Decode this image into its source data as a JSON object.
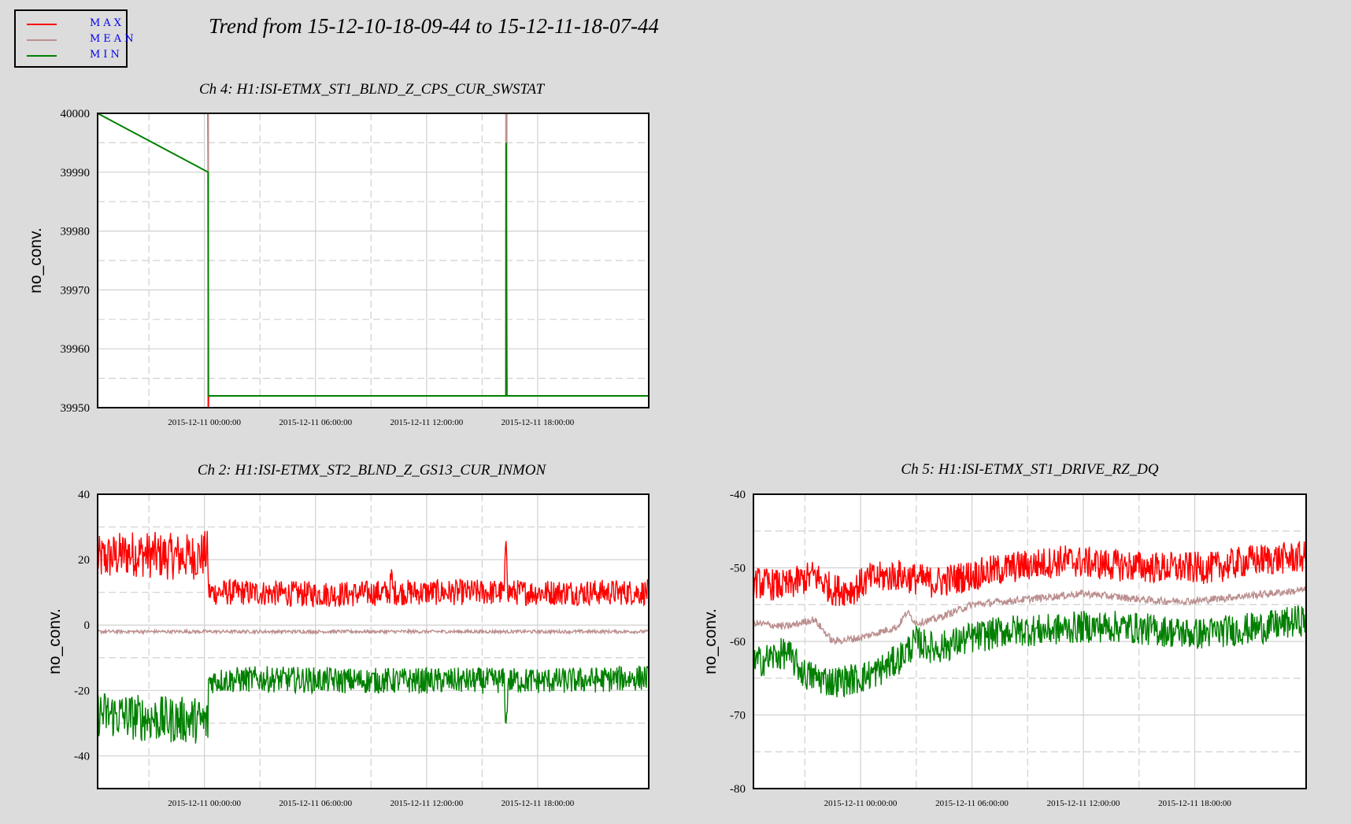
{
  "title": "Trend from 15-12-10-18-09-44 to 15-12-11-18-07-44",
  "legend": {
    "items": [
      {
        "label": "MAX",
        "color": "#ff0000"
      },
      {
        "label": "MEAN",
        "color": "#bc8f8f"
      },
      {
        "label": "MIN",
        "color": "#008000"
      }
    ]
  },
  "chart_data": [
    {
      "type": "line",
      "title": "Ch 4: H1:ISI-ETMX_ST1_BLND_Z_CPS_CUR_SWSTAT",
      "ylabel": "no_conv.",
      "ylim": [
        39950,
        40000
      ],
      "yticks": [
        "39950",
        "39960",
        "39970",
        "39980",
        "39990",
        "40000"
      ],
      "xlim": [
        -5.77,
        24.0
      ],
      "xticks": [
        {
          "label": "2015-12-11 00:00:00",
          "h": 0
        },
        {
          "label": "2015-12-11 06:00:00",
          "h": 6
        },
        {
          "label": "2015-12-11 12:00:00",
          "h": 12
        },
        {
          "label": "2015-12-11 18:00:00",
          "h": 18
        }
      ],
      "grid": true,
      "series": [
        {
          "name": "MAX",
          "color": "#ff0000",
          "x": [
            -5.77,
            0.19,
            0.2,
            0.21,
            0.22,
            16.29,
            16.3,
            16.31,
            16.32,
            16.33,
            24.0
          ],
          "y": [
            40000,
            40000,
            39993,
            39950,
            39952,
            39952,
            40000,
            39967,
            40000,
            39952,
            39952
          ]
        },
        {
          "name": "MEAN",
          "color": "#bc8f8f",
          "x": [
            -5.77,
            0.2,
            0.21,
            0.22,
            16.29,
            16.3,
            16.32,
            16.33,
            24.0
          ],
          "y": [
            40000,
            40000,
            39952,
            39952,
            39952,
            40000,
            40000,
            39952,
            39952
          ]
        },
        {
          "name": "MIN",
          "color": "#008000",
          "x": [
            -5.77,
            0.2,
            0.21,
            0.22,
            16.29,
            16.3,
            16.31,
            16.33,
            16.34,
            24.0
          ],
          "y": [
            40000,
            39990,
            39952,
            39952,
            39952,
            39995,
            39966,
            39952,
            39952,
            39952
          ]
        }
      ]
    },
    {
      "type": "line",
      "title": "Ch 2: H1:ISI-ETMX_ST2_BLND_Z_GS13_CUR_INMON",
      "ylabel": "no_conv.",
      "ylim": [
        -50,
        40
      ],
      "yticks": [
        "-40",
        "-20",
        "0",
        "20",
        "40"
      ],
      "xlim": [
        -5.77,
        24.0
      ],
      "xticks": [
        {
          "label": "2015-12-11 00:00:00",
          "h": 0
        },
        {
          "label": "2015-12-11 06:00:00",
          "h": 6
        },
        {
          "label": "2015-12-11 12:00:00",
          "h": 12
        },
        {
          "label": "2015-12-11 18:00:00",
          "h": 18
        }
      ],
      "grid": true,
      "series": [
        {
          "name": "MAX",
          "color": "#ff0000",
          "x": [
            -5.77,
            -4,
            -2,
            -0.5,
            0.2,
            0.21,
            2,
            5,
            8,
            10,
            10.1,
            10.2,
            13,
            16.2,
            16.3,
            16.4,
            20,
            24.0
          ],
          "y": [
            20,
            22,
            21,
            21,
            22,
            10,
            10,
            9.5,
            9.5,
            10,
            15,
            10,
            10,
            10,
            28,
            10,
            10,
            10
          ]
        },
        {
          "name": "MEAN",
          "color": "#bc8f8f",
          "x": [
            -5.77,
            0.2,
            6,
            12,
            18,
            24.0
          ],
          "y": [
            -2,
            -2,
            -2,
            -2,
            -2,
            -2
          ]
        },
        {
          "name": "MIN",
          "color": "#008000",
          "x": [
            -5.77,
            -4,
            -2,
            -0.5,
            0.2,
            0.21,
            3,
            8,
            13,
            16.2,
            16.3,
            16.4,
            20,
            24.0
          ],
          "y": [
            -27,
            -28,
            -29,
            -29,
            -30,
            -17,
            -16.5,
            -17,
            -17,
            -17,
            -33,
            -17,
            -17,
            -16
          ]
        }
      ]
    },
    {
      "type": "line",
      "title": "Ch 5: H1:ISI-ETMX_ST1_DRIVE_RZ_DQ",
      "ylabel": "no_conv.",
      "ylim": [
        -80,
        -40
      ],
      "yticks": [
        "-80",
        "-70",
        "-60",
        "-50",
        "-40"
      ],
      "xlim": [
        -5.77,
        24.0
      ],
      "xticks": [
        {
          "label": "2015-12-11 00:00:00",
          "h": 0
        },
        {
          "label": "2015-12-11 06:00:00",
          "h": 6
        },
        {
          "label": "2015-12-11 12:00:00",
          "h": 12
        },
        {
          "label": "2015-12-11 18:00:00",
          "h": 18
        }
      ],
      "grid": true,
      "series": [
        {
          "name": "MAX",
          "color": "#ff0000",
          "x": [
            -5.77,
            -4,
            -2.5,
            -1.5,
            -0.5,
            0.5,
            2,
            4,
            6,
            8,
            11,
            13,
            16,
            19,
            21,
            24.0
          ],
          "y": [
            -52,
            -52.5,
            -51,
            -53,
            -53,
            -51.5,
            -51,
            -52,
            -51,
            -50,
            -49,
            -49.5,
            -50,
            -50,
            -49,
            -48.5
          ]
        },
        {
          "name": "MEAN",
          "color": "#bc8f8f",
          "x": [
            -5.77,
            -4,
            -2.5,
            -1.5,
            0,
            2,
            2.5,
            3,
            4,
            6,
            8,
            10,
            12,
            14,
            16,
            18,
            20,
            22,
            24.0
          ],
          "y": [
            -57.5,
            -58,
            -57,
            -60,
            -59.5,
            -58,
            -56,
            -57.5,
            -57,
            -55,
            -54.5,
            -54,
            -53.5,
            -54,
            -54.5,
            -54.5,
            -54,
            -53.5,
            -53
          ]
        },
        {
          "name": "MIN",
          "color": "#008000",
          "x": [
            -5.77,
            -4,
            -3,
            -1.5,
            0,
            1,
            2,
            3,
            4,
            6,
            8,
            10,
            12,
            14,
            16,
            18,
            20,
            22,
            24.0
          ],
          "y": [
            -63,
            -61.5,
            -64.5,
            -65.5,
            -65,
            -64,
            -62.5,
            -60,
            -61,
            -59.5,
            -58.5,
            -58.5,
            -58,
            -58,
            -58.5,
            -59,
            -58.5,
            -58,
            -57
          ]
        }
      ]
    }
  ]
}
